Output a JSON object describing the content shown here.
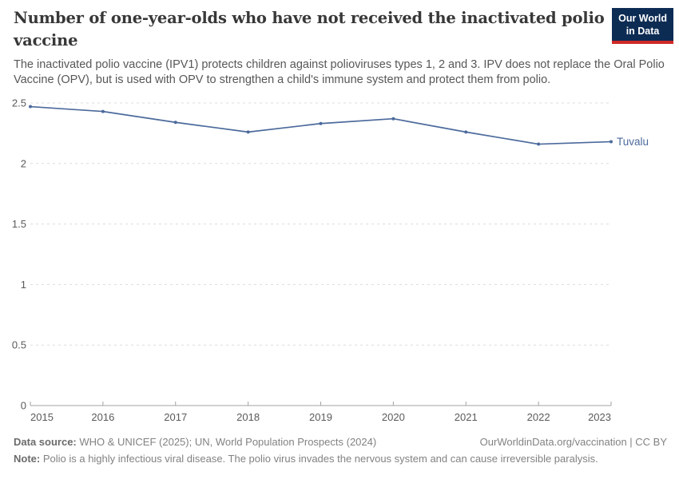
{
  "header": {
    "title": "Number of one-year-olds who have not received the inactivated polio vaccine",
    "subtitle": "The inactivated polio vaccine (IPV1) protects children against polioviruses types 1, 2 and 3. IPV does not replace the Oral Polio Vaccine (OPV), but is used with OPV to strengthen a child's immune system and protect them from polio.",
    "logo": {
      "line1": "Our World",
      "line2": "in Data",
      "bg_color": "#0d2c54",
      "stripe_color": "#cf2a27"
    }
  },
  "chart_data": {
    "type": "line",
    "title": "Number of one-year-olds who have not received the inactivated polio vaccine",
    "x": [
      2015,
      2016,
      2017,
      2018,
      2019,
      2020,
      2021,
      2022,
      2023
    ],
    "series": [
      {
        "name": "Tuvalu",
        "color": "#4C6A9C",
        "values": [
          2.47,
          2.43,
          2.34,
          2.26,
          2.33,
          2.37,
          2.26,
          2.16,
          2.18
        ]
      }
    ],
    "xlabel": "",
    "ylabel": "",
    "ylim": [
      0,
      2.5
    ],
    "yticks": [
      0,
      0.5,
      1,
      1.5,
      2,
      2.5
    ],
    "ytick_labels": [
      "0",
      "0.5",
      "1",
      "1.5",
      "2",
      "2.5"
    ],
    "grid": "horizontal-dashed",
    "grid_color": "#dcdcdc",
    "axis_color": "#a3a3a3",
    "tick_label_color": "#5a5a5a",
    "legend_position": "line-end-label"
  },
  "footer": {
    "datasource_label": "Data source:",
    "datasource_text": " WHO & UNICEF (2025); UN, World Population Prospects (2024)",
    "attribution": "OurWorldinData.org/vaccination | CC BY",
    "note_label": "Note:",
    "note_text": " Polio is a highly infectious viral disease. The polio virus invades the nervous system and can cause irreversible paralysis."
  }
}
